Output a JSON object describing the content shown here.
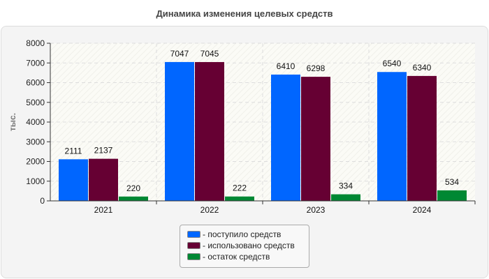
{
  "chart_data": {
    "type": "bar",
    "title": "Динамика изменения целевых средств",
    "ylabel": "тыс.",
    "xlabel": "",
    "categories": [
      "2021",
      "2022",
      "2023",
      "2024"
    ],
    "ylim": [
      0,
      8000
    ],
    "yticks": [
      0,
      1000,
      2000,
      3000,
      4000,
      5000,
      6000,
      7000,
      8000
    ],
    "grid": true,
    "legend_position": "bottom",
    "series": [
      {
        "name": "- поступило средств",
        "color": "#0066ff",
        "values": [
          2111,
          7047,
          6410,
          6540
        ]
      },
      {
        "name": "- использовано средств",
        "color": "#660033",
        "values": [
          2137,
          7045,
          6298,
          6340
        ]
      },
      {
        "name": "- остаток средств",
        "color": "#008833",
        "values": [
          220,
          222,
          334,
          534
        ]
      }
    ]
  }
}
